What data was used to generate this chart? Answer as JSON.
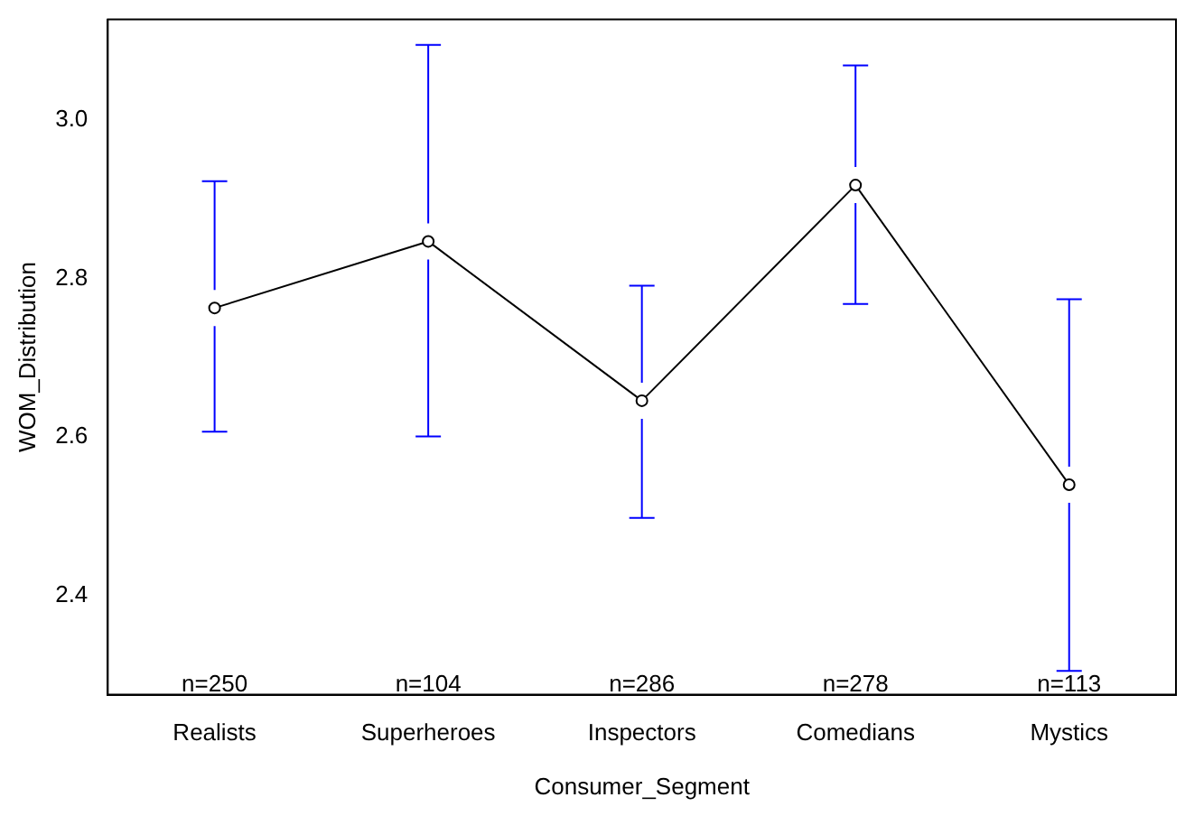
{
  "chart_data": {
    "type": "line",
    "xlabel": "Consumer_Segment",
    "ylabel": "WOM_Distribution",
    "categories": [
      "Realists",
      "Superheroes",
      "Inspectors",
      "Comedians",
      "Mystics"
    ],
    "series": [
      {
        "color": "#000000",
        "values": [
          2.763,
          2.847,
          2.646,
          2.918,
          2.54
        ],
        "errors": [
          [
            2.607,
            2.923
          ],
          [
            2.601,
            3.095
          ],
          [
            2.498,
            2.791
          ],
          [
            2.768,
            3.069
          ],
          [
            2.305,
            2.774
          ]
        ]
      }
    ],
    "ylim": [
      2.275,
      3.127
    ],
    "yticks": [
      2.4,
      2.6,
      2.8,
      {
        "value": 3.0,
        "label": "3.0"
      }
    ],
    "annotations": [
      "n=250",
      "n=104",
      "n=286",
      "n=278",
      "n=113"
    ],
    "grid": false,
    "legend": false,
    "marker": "circle",
    "line_style": "solid"
  }
}
